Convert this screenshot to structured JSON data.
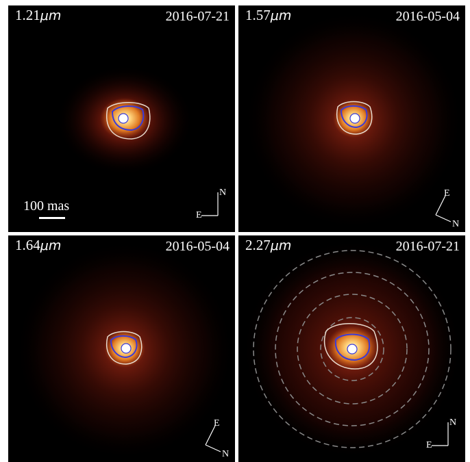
{
  "panels": [
    {
      "wavelength_value": "1.21",
      "wavelength_unit": "μm",
      "date": "2016-07-21",
      "compass": [
        "N",
        "E"
      ],
      "compass_orientation": "N-up",
      "scale_bar_label": "100 mas",
      "rings": false
    },
    {
      "wavelength_value": "1.57",
      "wavelength_unit": "μm",
      "date": "2016-05-04",
      "compass": [
        "E",
        "N"
      ],
      "compass_orientation": "rotated",
      "rings": false
    },
    {
      "wavelength_value": "1.64",
      "wavelength_unit": "μm",
      "date": "2016-05-04",
      "compass": [
        "E",
        "N"
      ],
      "compass_orientation": "rotated",
      "rings": true,
      "ring_style": "none"
    },
    {
      "wavelength_value": "2.27",
      "wavelength_unit": "μm",
      "date": "2016-07-21",
      "compass": [
        "N",
        "E"
      ],
      "compass_orientation": "N-up",
      "rings": true,
      "ring_style": "dashed-gray"
    }
  ],
  "colors": {
    "background": "#000000",
    "glow": "#8a1a0a",
    "core": "#f5a623",
    "peak": "#ffffff",
    "contour_white": "#e8dcd0",
    "contour_blue": "#3a3ad8",
    "ring": "#8a8a8a"
  }
}
